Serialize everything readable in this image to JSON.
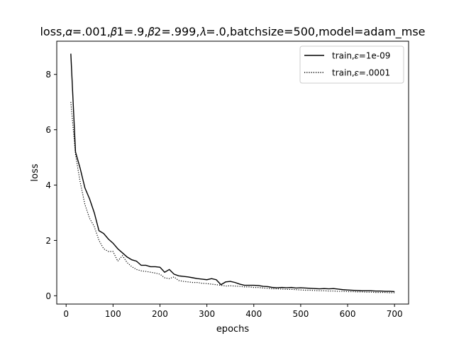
{
  "chart_data": {
    "type": "line",
    "title": "loss,𝛼=.001,𝛽1=.9,𝛽2=.999,𝜆=.0,batchsize=500,model=adam_mse",
    "xlabel": "epochs",
    "ylabel": "loss",
    "xlim": [
      -20,
      730
    ],
    "ylim": [
      -0.3,
      9.2
    ],
    "xticks": [
      0,
      100,
      200,
      300,
      400,
      500,
      600,
      700
    ],
    "yticks": [
      0,
      2,
      4,
      6,
      8
    ],
    "grid": false,
    "legend_position": "top-right",
    "x": [
      10,
      20,
      30,
      40,
      50,
      60,
      70,
      80,
      90,
      100,
      110,
      120,
      130,
      140,
      150,
      160,
      170,
      180,
      190,
      200,
      210,
      220,
      230,
      240,
      250,
      260,
      270,
      280,
      290,
      300,
      310,
      320,
      330,
      340,
      350,
      360,
      370,
      380,
      390,
      400,
      410,
      420,
      430,
      440,
      450,
      460,
      470,
      480,
      490,
      500,
      510,
      520,
      530,
      540,
      550,
      560,
      570,
      580,
      590,
      600,
      610,
      620,
      630,
      640,
      650,
      660,
      670,
      680,
      690,
      700
    ],
    "series": [
      {
        "name": "train,𝜀=1e-09",
        "line_style": "solid",
        "color": "#000000",
        "values": [
          8.75,
          5.2,
          4.6,
          3.9,
          3.5,
          3.0,
          2.35,
          2.25,
          2.05,
          1.9,
          1.7,
          1.55,
          1.4,
          1.3,
          1.25,
          1.1,
          1.1,
          1.05,
          1.05,
          1.03,
          0.85,
          0.95,
          0.78,
          0.72,
          0.7,
          0.68,
          0.65,
          0.62,
          0.6,
          0.58,
          0.62,
          0.58,
          0.4,
          0.5,
          0.52,
          0.48,
          0.42,
          0.38,
          0.38,
          0.38,
          0.37,
          0.34,
          0.33,
          0.3,
          0.29,
          0.3,
          0.29,
          0.3,
          0.28,
          0.29,
          0.28,
          0.27,
          0.26,
          0.25,
          0.26,
          0.25,
          0.26,
          0.24,
          0.22,
          0.21,
          0.2,
          0.19,
          0.18,
          0.18,
          0.18,
          0.17,
          0.17,
          0.16,
          0.16,
          0.15
        ]
      },
      {
        "name": "train,𝜀=.0001",
        "line_style": "dotted",
        "color": "#000000",
        "values": [
          7.0,
          5.1,
          4.1,
          3.3,
          2.8,
          2.5,
          2.0,
          1.7,
          1.6,
          1.6,
          1.25,
          1.45,
          1.2,
          1.05,
          0.95,
          0.9,
          0.88,
          0.85,
          0.82,
          0.78,
          0.65,
          0.62,
          0.68,
          0.55,
          0.52,
          0.5,
          0.48,
          0.48,
          0.45,
          0.44,
          0.42,
          0.4,
          0.38,
          0.35,
          0.36,
          0.35,
          0.34,
          0.32,
          0.32,
          0.3,
          0.3,
          0.28,
          0.27,
          0.25,
          0.25,
          0.24,
          0.23,
          0.23,
          0.22,
          0.21,
          0.2,
          0.2,
          0.19,
          0.18,
          0.18,
          0.17,
          0.17,
          0.16,
          0.16,
          0.15,
          0.15,
          0.14,
          0.14,
          0.13,
          0.13,
          0.12,
          0.12,
          0.12,
          0.11,
          0.11
        ]
      }
    ]
  }
}
